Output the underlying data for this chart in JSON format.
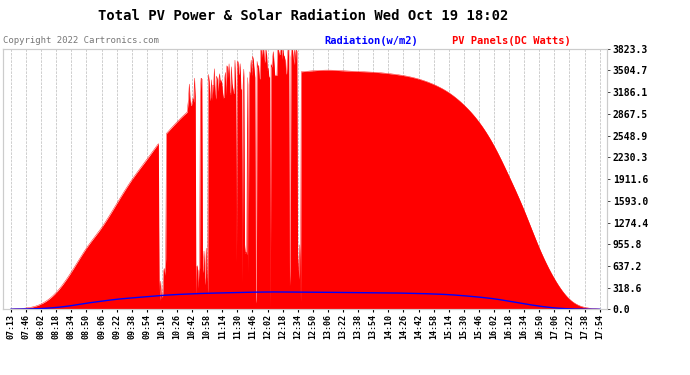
{
  "title": "Total PV Power & Solar Radiation Wed Oct 19 18:02",
  "copyright_text": "Copyright 2022 Cartronics.com",
  "legend_radiation": "Radiation(w/m2)",
  "legend_pv": "PV Panels(DC Watts)",
  "bg_color": "#ffffff",
  "plot_bg_color": "#ffffff",
  "grid_color": "#aaaaaa",
  "text_color": "#000000",
  "title_color": "#000000",
  "radiation_color": "#0000ff",
  "pv_color": "#ff0000",
  "ymin": 0.0,
  "ymax": 3823.3,
  "yticks": [
    0.0,
    318.6,
    637.2,
    955.8,
    1274.4,
    1593.0,
    1911.6,
    2230.3,
    2548.9,
    2867.5,
    3186.1,
    3504.7,
    3823.3
  ],
  "time_labels": [
    "07:13",
    "07:46",
    "08:02",
    "08:18",
    "08:34",
    "08:50",
    "09:06",
    "09:22",
    "09:38",
    "09:54",
    "10:10",
    "10:26",
    "10:42",
    "10:58",
    "11:14",
    "11:30",
    "11:46",
    "12:02",
    "12:18",
    "12:34",
    "12:50",
    "13:06",
    "13:22",
    "13:38",
    "13:54",
    "14:10",
    "14:26",
    "14:42",
    "14:58",
    "15:14",
    "15:30",
    "15:46",
    "16:02",
    "16:18",
    "16:34",
    "16:50",
    "17:06",
    "17:22",
    "17:38",
    "17:54"
  ]
}
